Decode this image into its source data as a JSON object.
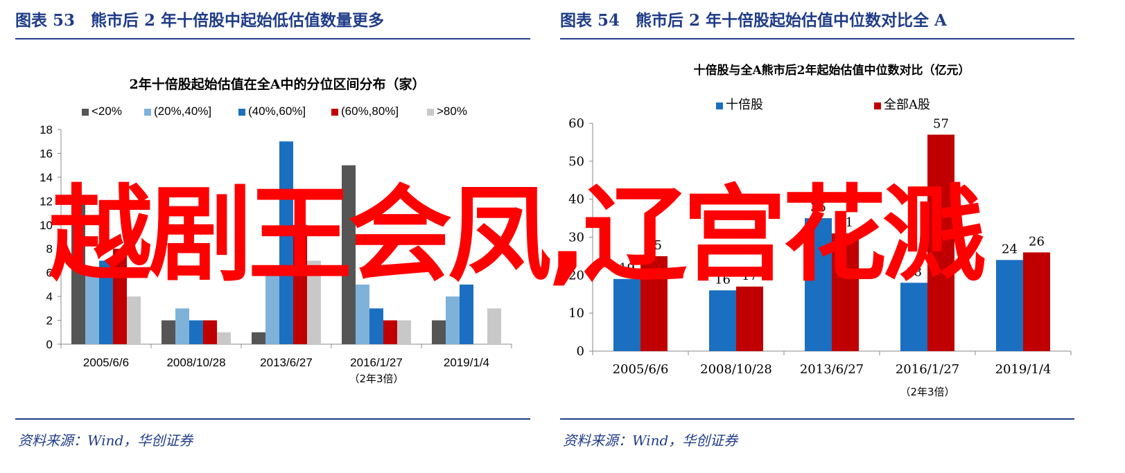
{
  "left_panel": {
    "title": "图表 53　熊市后 2 年十倍股中起始低估值数量更多",
    "source": "资料来源：Wind，华创证券"
  },
  "right_panel": {
    "title": "图表 54　熊市后 2 年十倍股起始估值中位数对比全 A",
    "source": "资料来源：Wind，华创证券"
  },
  "overlay_text": "越剧王会凤,辽宫花溅",
  "chart_data": [
    {
      "type": "bar",
      "title": "2年十倍股起始估值在全A中的分位区间分布（家）",
      "categories": [
        "2005/6/6",
        "2008/10/28",
        "2013/6/27",
        "2016/1/27",
        "2019/1/4"
      ],
      "category_notes": [
        "",
        "",
        "",
        "（2年3倍）",
        ""
      ],
      "series": [
        {
          "name": "<20%",
          "color": "#555555",
          "values": [
            12,
            2,
            1,
            15,
            2
          ]
        },
        {
          "name": "(20%,40%]",
          "color": "#7fb2d9",
          "values": [
            6,
            3,
            6,
            5,
            4
          ]
        },
        {
          "name": "(40%,60%]",
          "color": "#1a6fc0",
          "values": [
            7,
            2,
            17,
            3,
            5
          ]
        },
        {
          "name": "(60%,80%]",
          "color": "#c00000",
          "values": [
            8,
            2,
            10,
            2,
            0
          ]
        },
        {
          "name": ">80%",
          "color": "#c8c8c8",
          "values": [
            4,
            1,
            7,
            2,
            3
          ]
        }
      ],
      "ylim": [
        0,
        18
      ],
      "yticks": [
        0,
        2,
        4,
        6,
        8,
        10,
        12,
        14,
        16,
        18
      ],
      "grid": false,
      "legend": "top"
    },
    {
      "type": "bar",
      "title": "十倍股与全A熊市后2年起始估值中位数对比（亿元）",
      "categories": [
        "2005/6/6",
        "2008/10/28",
        "2013/6/27",
        "2016/1/27",
        "2019/1/4"
      ],
      "category_notes": [
        "",
        "",
        "",
        "（2年3倍）",
        ""
      ],
      "series": [
        {
          "name": "十倍股",
          "color": "#1a6fc0",
          "values": [
            19,
            16,
            35,
            18,
            24
          ]
        },
        {
          "name": "全部A股",
          "color": "#c00000",
          "values": [
            25,
            17,
            31,
            57,
            26
          ]
        }
      ],
      "value_labels": [
        [
          "19",
          "16",
          "35",
          "18",
          "24"
        ],
        [
          "25",
          "17",
          "31",
          "57",
          "26"
        ]
      ],
      "ylim": [
        0,
        60
      ],
      "yticks": [
        0,
        10,
        20,
        30,
        40,
        50,
        60
      ],
      "grid": false,
      "legend": "top"
    }
  ]
}
